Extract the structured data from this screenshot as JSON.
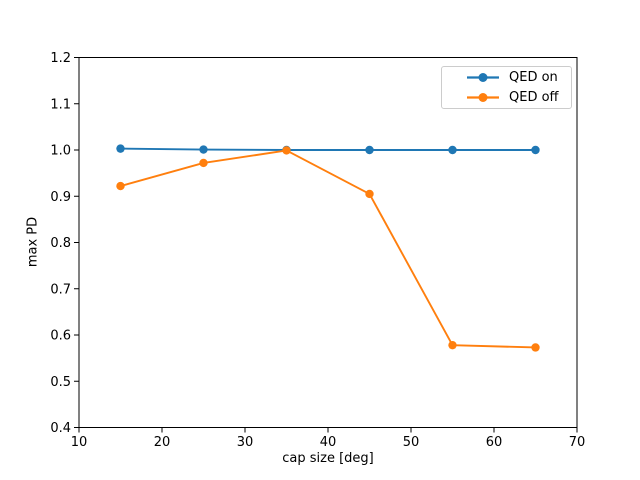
{
  "figure": {
    "background": "#ffffff"
  },
  "chart_data": {
    "type": "line",
    "title": "",
    "xlabel": "cap size [deg]",
    "ylabel": "max PD",
    "xlim": [
      10,
      70
    ],
    "ylim": [
      0.4,
      1.2
    ],
    "xticks": [
      10,
      20,
      30,
      40,
      50,
      60,
      70
    ],
    "xtick_labels": [
      "10",
      "20",
      "30",
      "40",
      "50",
      "60",
      "70"
    ],
    "yticks": [
      0.4,
      0.5,
      0.6,
      0.7,
      0.8,
      0.9,
      1.0,
      1.1,
      1.2
    ],
    "ytick_labels": [
      "0.4",
      "0.5",
      "0.6",
      "0.7",
      "0.8",
      "0.9",
      "1.0",
      "1.1",
      "1.2"
    ],
    "grid": false,
    "x": [
      15,
      25,
      35,
      45,
      55,
      65
    ],
    "series": [
      {
        "name": "QED on",
        "color": "#1f77b4",
        "marker": "circle",
        "values": [
          1.003,
          1.001,
          1.0,
          1.0,
          1.0,
          1.0
        ]
      },
      {
        "name": "QED off",
        "color": "#ff7f0e",
        "marker": "circle",
        "values": [
          0.922,
          0.972,
          0.999,
          0.905,
          0.578,
          0.573
        ]
      }
    ],
    "legend": {
      "position": "upper right",
      "border_color": "#cccccc",
      "entries": [
        "QED on",
        "QED off"
      ]
    },
    "axis_color": "#000000"
  }
}
